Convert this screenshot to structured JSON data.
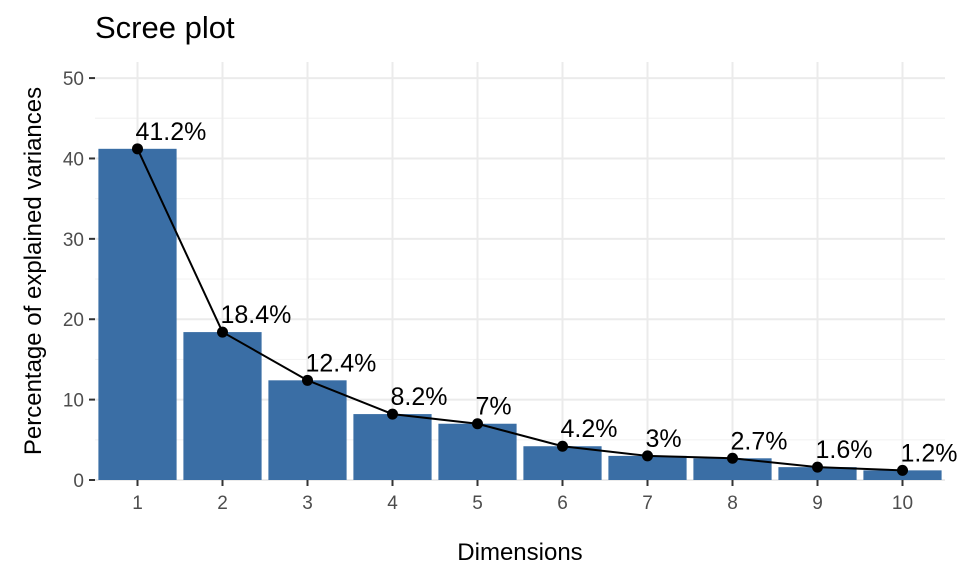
{
  "chart_data": {
    "type": "bar",
    "title": "Scree plot",
    "xlabel": "Dimensions",
    "ylabel": "Percentage of explained variances",
    "categories": [
      "1",
      "2",
      "3",
      "4",
      "5",
      "6",
      "7",
      "8",
      "9",
      "10"
    ],
    "values": [
      41.2,
      18.4,
      12.4,
      8.2,
      7.0,
      4.2,
      3.0,
      2.7,
      1.6,
      1.2
    ],
    "labels": [
      "41.2%",
      "18.4%",
      "12.4%",
      "8.2%",
      "7%",
      "4.2%",
      "3%",
      "2.7%",
      "1.6%",
      "1.2%"
    ],
    "ylim": [
      0,
      52
    ],
    "yticks": [
      0,
      10,
      20,
      30,
      40,
      50
    ],
    "overlay": "line-with-points",
    "grid": true,
    "legend": "none",
    "colors": {
      "bar": "#3a6ea5",
      "line": "#000000",
      "point": "#000000",
      "grid_major": "#ebebeb",
      "grid_minor": "#f3f3f3",
      "tick_text": "#4d4d4d",
      "tick_mark": "#333333"
    }
  }
}
